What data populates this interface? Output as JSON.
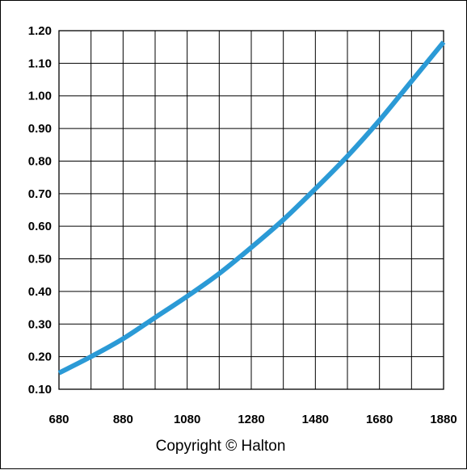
{
  "chart_data": {
    "type": "line",
    "title": "",
    "xlabel": "",
    "ylabel": "",
    "xlim": [
      680,
      1880
    ],
    "ylim": [
      0.1,
      1.2
    ],
    "x_ticks": [
      "680",
      "880",
      "1080",
      "1280",
      "1480",
      "1680",
      "1880"
    ],
    "y_ticks": [
      "0.10",
      "0.20",
      "0.30",
      "0.40",
      "0.50",
      "0.60",
      "0.70",
      "0.80",
      "0.90",
      "1.00",
      "1.10",
      "1.20"
    ],
    "x_grid_step": 100,
    "grid": true,
    "legend": "none",
    "series": [
      {
        "color": "#2B9AD6",
        "x": [
          680,
          780,
          880,
          980,
          1080,
          1180,
          1280,
          1380,
          1480,
          1580,
          1680,
          1780,
          1880
        ],
        "y": [
          0.15,
          0.2,
          0.255,
          0.32,
          0.385,
          0.455,
          0.535,
          0.62,
          0.715,
          0.815,
          0.925,
          1.045,
          1.165
        ]
      }
    ]
  },
  "footer": {
    "copyright": "Copyright © Halton"
  }
}
